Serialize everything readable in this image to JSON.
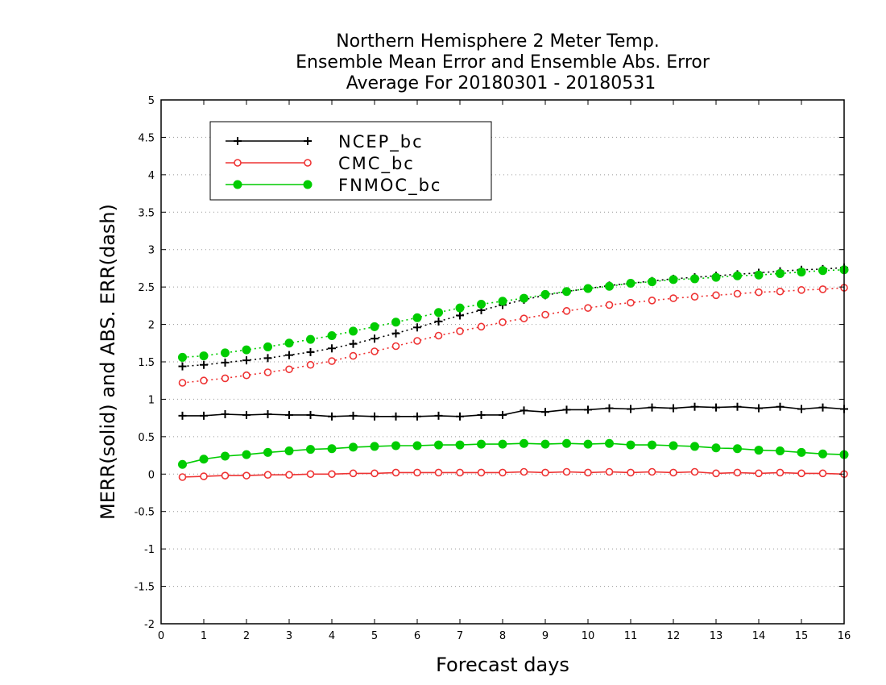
{
  "chart_data": {
    "type": "line",
    "title_lines": [
      "Northern Hemisphere 2 Meter Temp.",
      "Ensemble Mean Error and Ensemble Abs. Error",
      "Average For 20180301 - 20180531"
    ],
    "xlabel": "Forecast days",
    "ylabel": "MERR(solid) and ABS. ERR(dash)",
    "xlim": [
      0,
      16
    ],
    "ylim": [
      -2,
      5
    ],
    "x_ticks": [
      "0",
      "1",
      "2",
      "3",
      "4",
      "5",
      "6",
      "7",
      "8",
      "9",
      "10",
      "11",
      "12",
      "13",
      "14",
      "15",
      "16"
    ],
    "y_ticks": [
      "-2",
      "-1.5",
      "-1",
      "-0.5",
      "0",
      "0.5",
      "1",
      "1.5",
      "2",
      "2.5",
      "3",
      "3.5",
      "4",
      "4.5",
      "5"
    ],
    "grid": "horizontal dotted",
    "legend_position": "top-left",
    "x": [
      0.5,
      1,
      1.5,
      2,
      2.5,
      3,
      3.5,
      4,
      4.5,
      5,
      5.5,
      6,
      6.5,
      7,
      7.5,
      8,
      8.5,
      9,
      9.5,
      10,
      10.5,
      11,
      11.5,
      12,
      12.5,
      13,
      13.5,
      14,
      14.5,
      15,
      15.5,
      16
    ],
    "series": [
      {
        "name": "NCEP_bc",
        "color": "#000000",
        "marker": "plus",
        "merr": [
          0.78,
          0.78,
          0.8,
          0.79,
          0.8,
          0.79,
          0.79,
          0.77,
          0.78,
          0.77,
          0.77,
          0.77,
          0.78,
          0.77,
          0.79,
          0.79,
          0.85,
          0.83,
          0.86,
          0.86,
          0.88,
          0.87,
          0.89,
          0.88,
          0.9,
          0.89,
          0.9,
          0.88,
          0.9,
          0.87,
          0.89,
          0.87
        ],
        "abs_err": [
          1.44,
          1.46,
          1.49,
          1.52,
          1.55,
          1.59,
          1.63,
          1.68,
          1.74,
          1.81,
          1.88,
          1.96,
          2.04,
          2.12,
          2.19,
          2.26,
          2.33,
          2.39,
          2.44,
          2.48,
          2.52,
          2.55,
          2.58,
          2.61,
          2.63,
          2.65,
          2.67,
          2.69,
          2.71,
          2.73,
          2.74,
          2.76
        ]
      },
      {
        "name": "CMC_bc",
        "color": "#ee3333",
        "marker": "open-circle",
        "merr": [
          -0.04,
          -0.03,
          -0.02,
          -0.02,
          -0.01,
          -0.01,
          0.0,
          0.0,
          0.01,
          0.01,
          0.02,
          0.02,
          0.02,
          0.02,
          0.02,
          0.02,
          0.03,
          0.02,
          0.03,
          0.02,
          0.03,
          0.02,
          0.03,
          0.02,
          0.03,
          0.01,
          0.02,
          0.01,
          0.02,
          0.01,
          0.01,
          0.0
        ],
        "abs_err": [
          1.22,
          1.25,
          1.28,
          1.32,
          1.36,
          1.4,
          1.46,
          1.51,
          1.58,
          1.64,
          1.71,
          1.78,
          1.85,
          1.91,
          1.97,
          2.03,
          2.08,
          2.13,
          2.18,
          2.22,
          2.26,
          2.29,
          2.32,
          2.35,
          2.37,
          2.39,
          2.41,
          2.43,
          2.44,
          2.46,
          2.47,
          2.49
        ]
      },
      {
        "name": "FNMOC_bc",
        "color": "#00cc00",
        "marker": "filled-circle",
        "merr": [
          0.13,
          0.2,
          0.24,
          0.26,
          0.29,
          0.31,
          0.33,
          0.34,
          0.36,
          0.37,
          0.38,
          0.38,
          0.39,
          0.39,
          0.4,
          0.4,
          0.41,
          0.4,
          0.41,
          0.4,
          0.41,
          0.39,
          0.39,
          0.38,
          0.37,
          0.35,
          0.34,
          0.32,
          0.31,
          0.29,
          0.27,
          0.26
        ],
        "abs_err": [
          1.56,
          1.58,
          1.62,
          1.66,
          1.7,
          1.75,
          1.8,
          1.85,
          1.91,
          1.97,
          2.03,
          2.09,
          2.16,
          2.22,
          2.27,
          2.31,
          2.35,
          2.4,
          2.44,
          2.48,
          2.51,
          2.55,
          2.57,
          2.6,
          2.61,
          2.63,
          2.65,
          2.66,
          2.68,
          2.7,
          2.72,
          2.73
        ]
      }
    ]
  }
}
